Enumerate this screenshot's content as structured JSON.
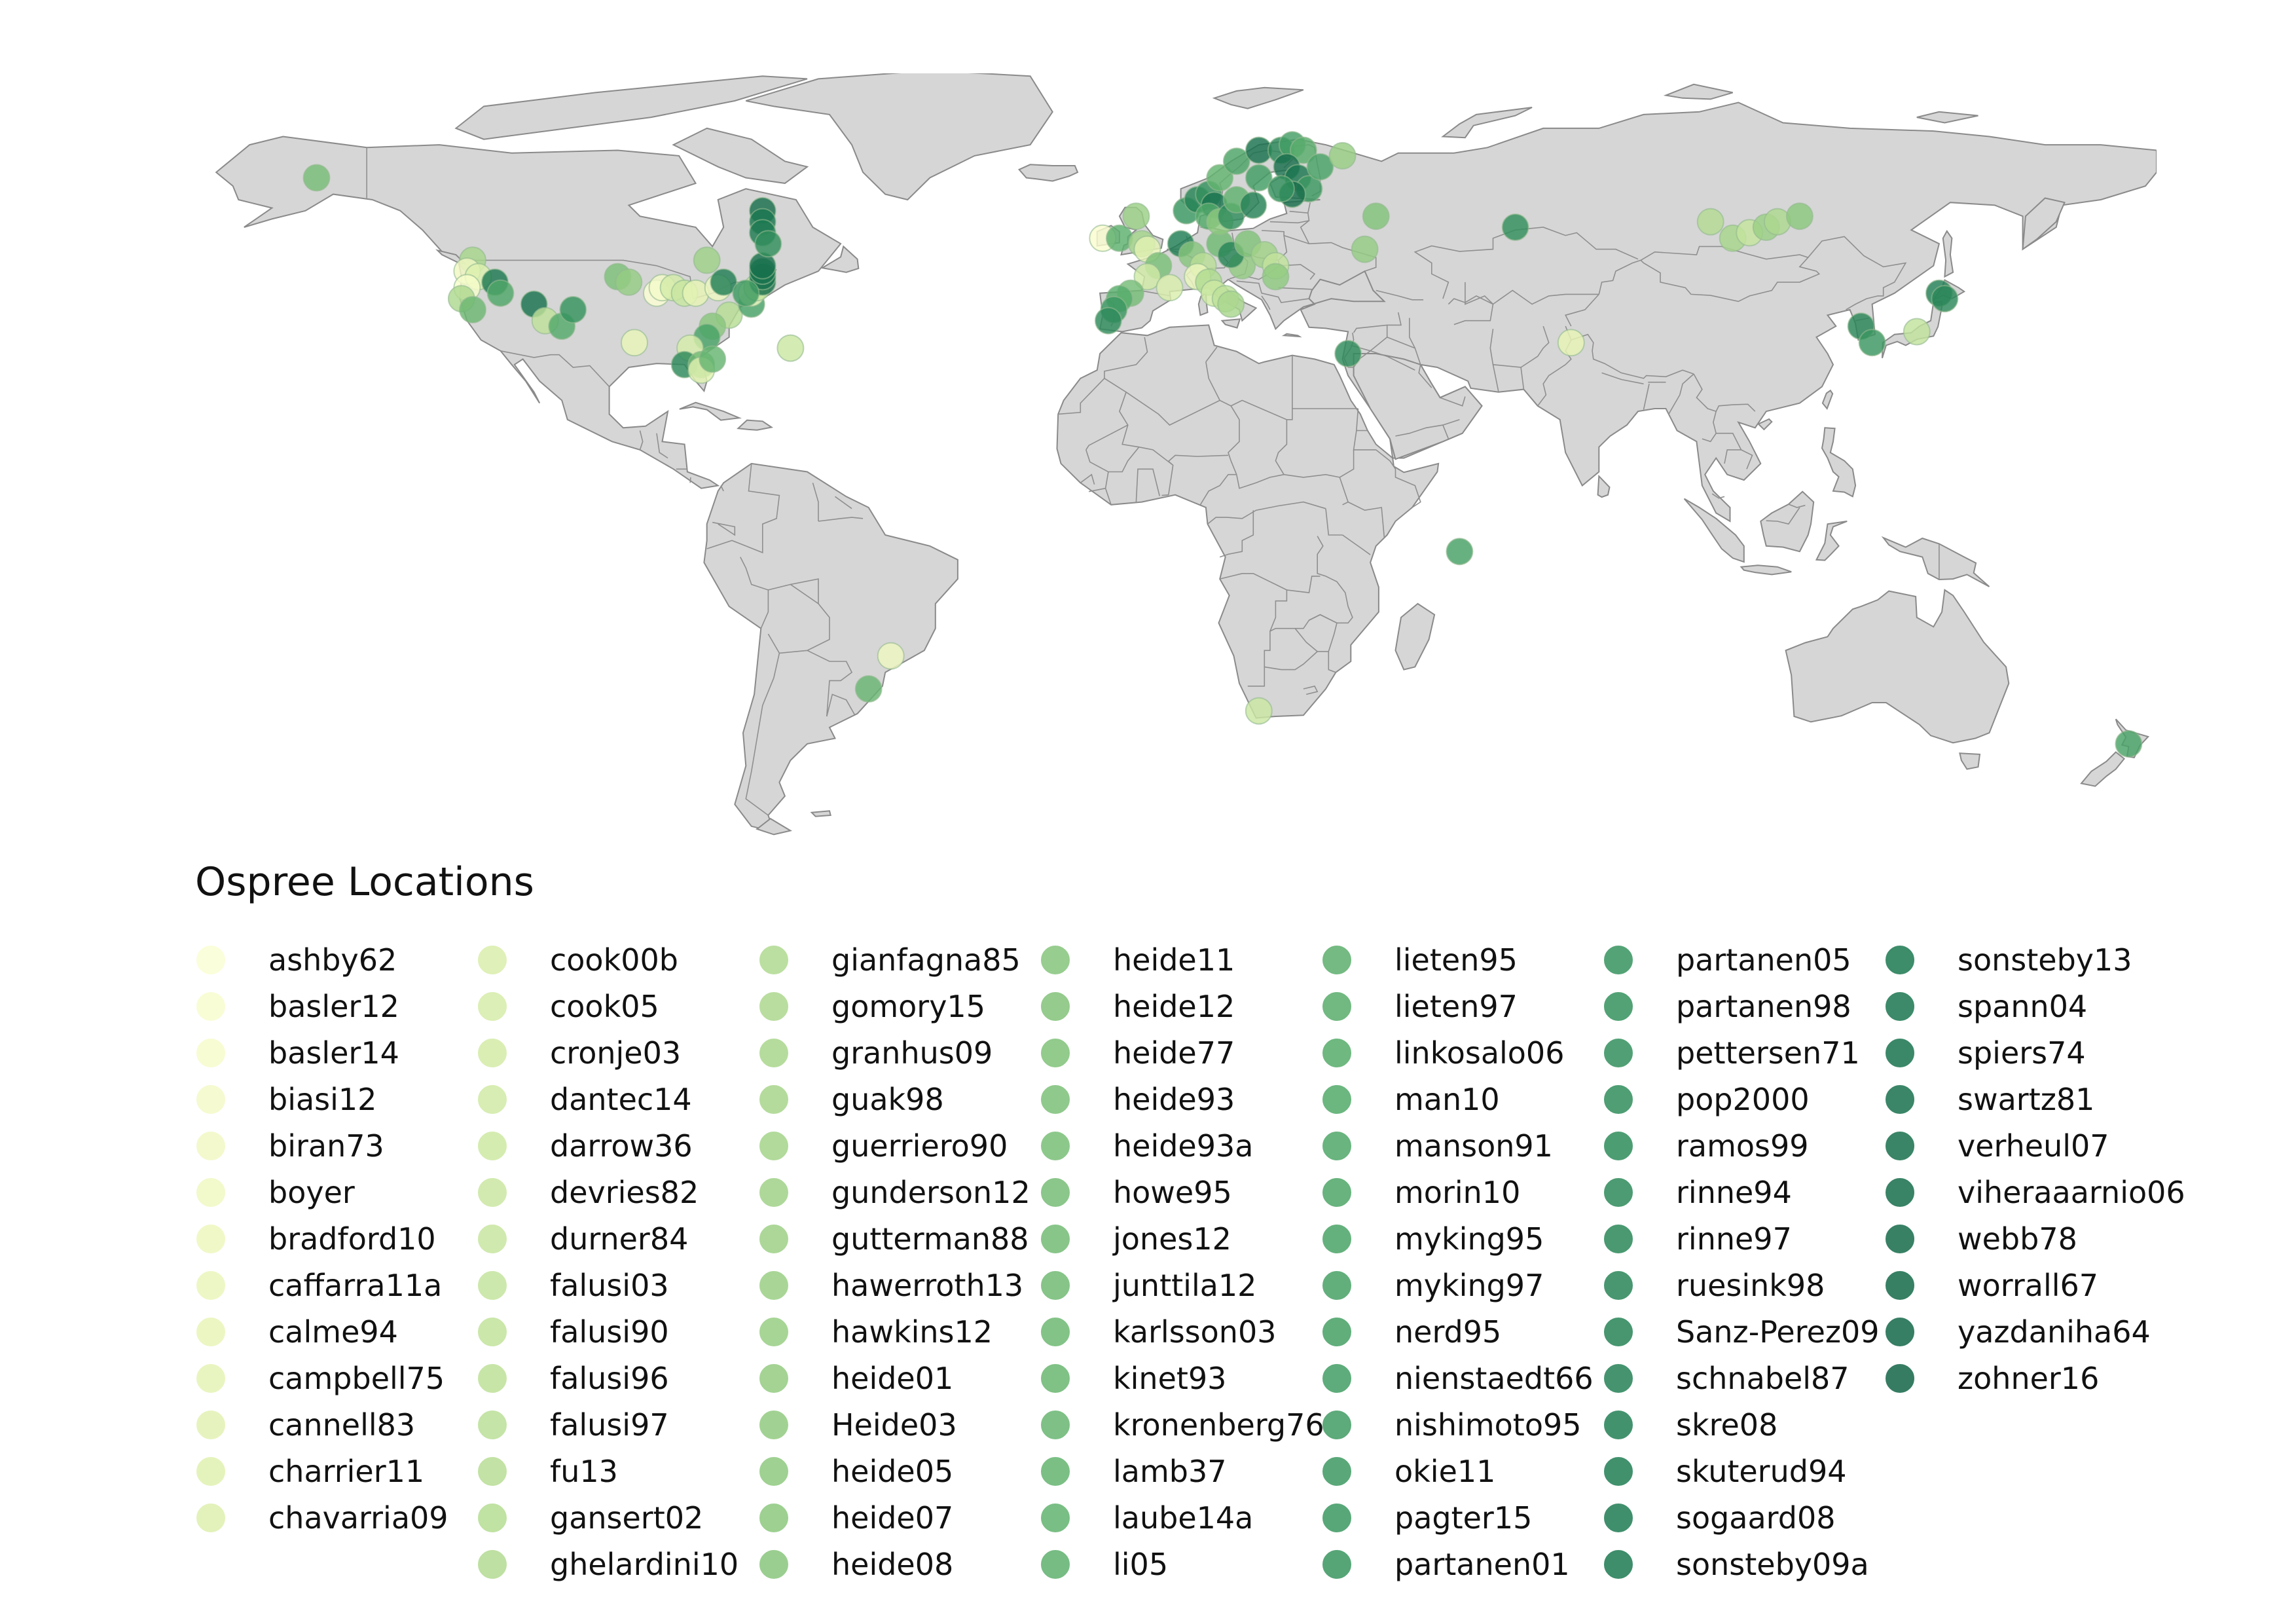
{
  "legend": {
    "title": "Ospree Locations",
    "studies": [
      [
        "ashby62",
        "#fbfed4"
      ],
      [
        "basler12",
        "#f9fdd0"
      ],
      [
        "basler14",
        "#f7fccc"
      ],
      [
        "biasi12",
        "#f4fac8"
      ],
      [
        "biran73",
        "#f2f9c5"
      ],
      [
        "boyer",
        "#f0f8c2"
      ],
      [
        "bradford10",
        "#eef7bf"
      ],
      [
        "caffarra11a",
        "#ebf6bc"
      ],
      [
        "calme94",
        "#e9f5b9"
      ],
      [
        "campbell75",
        "#e6f4b6"
      ],
      [
        "cannell83",
        "#e3f2b3"
      ],
      [
        "charrier11",
        "#e0f1b0"
      ],
      [
        "chavarria09",
        "#ddf0ae"
      ],
      [
        "cook00b",
        "#daeeac"
      ],
      [
        "cook05",
        "#d7edaa"
      ],
      [
        "cronje03",
        "#d4eca8"
      ],
      [
        "dantec14",
        "#d1eaa6"
      ],
      [
        "darrow36",
        "#cee9a4"
      ],
      [
        "devries82",
        "#cbe7a2"
      ],
      [
        "durner84",
        "#c8e6a0"
      ],
      [
        "falusi03",
        "#c5e49e"
      ],
      [
        "falusi90",
        "#c2e39c"
      ],
      [
        "falusi96",
        "#bfe19a"
      ],
      [
        "falusi97",
        "#bce098"
      ],
      [
        "fu13",
        "#b9de96"
      ],
      [
        "gansert02",
        "#b6dd94"
      ],
      [
        "ghelardini10",
        "#b3db92"
      ],
      [
        "gianfagna85",
        "#b0da90"
      ],
      [
        "gomory15",
        "#add88f"
      ],
      [
        "granhus09",
        "#aad78d"
      ],
      [
        "guak98",
        "#a7d58b"
      ],
      [
        "guerriero90",
        "#a4d48a"
      ],
      [
        "gunderson12",
        "#a1d288"
      ],
      [
        "gutterman88",
        "#9ed187"
      ],
      [
        "hawerroth13",
        "#9bcf85"
      ],
      [
        "hawkins12",
        "#98ce84"
      ],
      [
        "heide01",
        "#95cc82"
      ],
      [
        "Heide03",
        "#92cb81"
      ],
      [
        "heide05",
        "#8fc980"
      ],
      [
        "heide07",
        "#8cc87e"
      ],
      [
        "heide08",
        "#89c67d"
      ],
      [
        "heide11",
        "#86c57c"
      ],
      [
        "heide12",
        "#83c37a"
      ],
      [
        "heide77",
        "#80c279"
      ],
      [
        "heide93",
        "#7dc078"
      ],
      [
        "heide93a",
        "#7abf77"
      ],
      [
        "howe95",
        "#77bd76"
      ],
      [
        "jones12",
        "#74bc75"
      ],
      [
        "junttila12",
        "#71ba74"
      ],
      [
        "karlsson03",
        "#6eb973"
      ],
      [
        "kinet93",
        "#6bb772"
      ],
      [
        "kronenberg76",
        "#68b671"
      ],
      [
        "lamb37",
        "#65b470"
      ],
      [
        "laube14a",
        "#62b36f"
      ],
      [
        "li05",
        "#5fb16e"
      ],
      [
        "lieten95",
        "#5caf6d"
      ],
      [
        "lieten97",
        "#59ad6c"
      ],
      [
        "linkosalo06",
        "#56ac6b"
      ],
      [
        "man10",
        "#53aa6a"
      ],
      [
        "manson91",
        "#50a869"
      ],
      [
        "morin10",
        "#4ea668"
      ],
      [
        "myking95",
        "#4ba467"
      ],
      [
        "myking97",
        "#48a266"
      ],
      [
        "nerd95",
        "#46a065"
      ],
      [
        "nienstaedt66",
        "#439e64"
      ],
      [
        "nishimoto95",
        "#419c63"
      ],
      [
        "okie11",
        "#3e9a62"
      ],
      [
        "pagter15",
        "#3c9861"
      ],
      [
        "partanen01",
        "#399660"
      ],
      [
        "partanen05",
        "#37945f"
      ],
      [
        "partanen98",
        "#35925e"
      ],
      [
        "pettersen71",
        "#33905d"
      ],
      [
        "pop2000",
        "#318e5c"
      ],
      [
        "ramos99",
        "#2f8c5b"
      ],
      [
        "rinne94",
        "#2d8a5a"
      ],
      [
        "rinne97",
        "#2b8859"
      ],
      [
        "ruesink98",
        "#298658"
      ],
      [
        "Sanz-Perez09",
        "#278457"
      ],
      [
        "schnabel87",
        "#258256"
      ],
      [
        "skre08",
        "#238055"
      ],
      [
        "skuterud94",
        "#217e54"
      ],
      [
        "sogaard08",
        "#1f7c53"
      ],
      [
        "sonsteby09a",
        "#1d7a52"
      ],
      [
        "sonsteby13",
        "#1c7851"
      ],
      [
        "spann04",
        "#1b7650"
      ],
      [
        "spiers74",
        "#1a744f"
      ],
      [
        "swartz81",
        "#19724e"
      ],
      [
        "verheul07",
        "#18704d"
      ],
      [
        "viheraaarnio06",
        "#176e4c"
      ],
      [
        "webb78",
        "#166c4b"
      ],
      [
        "worrall67",
        "#156a4a"
      ],
      [
        "yazdaniha64",
        "#146849"
      ],
      [
        "zohner16",
        "#136648"
      ]
    ]
  },
  "map": {
    "projection": "equirectangular",
    "lon_range": [
      -180,
      180
    ],
    "lat_range": [
      -57,
      83
    ],
    "land_color": "#d6d6d6",
    "border_color": "#8a8a8a",
    "sites": [
      {
        "lon": -150,
        "lat": 64,
        "c": 46
      },
      {
        "lon": -122,
        "lat": 49,
        "c": 30
      },
      {
        "lon": -123,
        "lat": 47,
        "c": 5
      },
      {
        "lon": -121,
        "lat": 46,
        "c": 12
      },
      {
        "lon": -123,
        "lat": 44,
        "c": 2
      },
      {
        "lon": -124,
        "lat": 42,
        "c": 28
      },
      {
        "lon": -122,
        "lat": 40,
        "c": 50
      },
      {
        "lon": -118,
        "lat": 45,
        "c": 83
      },
      {
        "lon": -117,
        "lat": 43,
        "c": 60
      },
      {
        "lon": -111,
        "lat": 41,
        "c": 86
      },
      {
        "lon": -109,
        "lat": 38,
        "c": 22
      },
      {
        "lon": -106,
        "lat": 37,
        "c": 58
      },
      {
        "lon": -104,
        "lat": 40,
        "c": 70
      },
      {
        "lon": -96,
        "lat": 46,
        "c": 44
      },
      {
        "lon": -94,
        "lat": 45,
        "c": 36
      },
      {
        "lon": -93,
        "lat": 34,
        "c": 8
      },
      {
        "lon": -89,
        "lat": 43,
        "c": 0
      },
      {
        "lon": -88,
        "lat": 44,
        "c": 3
      },
      {
        "lon": -86,
        "lat": 44,
        "c": 15
      },
      {
        "lon": -84,
        "lat": 43,
        "c": 19
      },
      {
        "lon": -82,
        "lat": 43,
        "c": 9
      },
      {
        "lon": -80,
        "lat": 49,
        "c": 33
      },
      {
        "lon": -78,
        "lat": 44,
        "c": 6
      },
      {
        "lon": -77,
        "lat": 45,
        "c": 80
      },
      {
        "lon": -76,
        "lat": 39,
        "c": 25
      },
      {
        "lon": -79,
        "lat": 37,
        "c": 40
      },
      {
        "lon": -80,
        "lat": 35,
        "c": 62
      },
      {
        "lon": -83,
        "lat": 33,
        "c": 14
      },
      {
        "lon": -84,
        "lat": 30,
        "c": 75
      },
      {
        "lon": -81,
        "lat": 30,
        "c": 48
      },
      {
        "lon": -81,
        "lat": 29,
        "c": 11
      },
      {
        "lon": -79,
        "lat": 31,
        "c": 52
      },
      {
        "lon": -72,
        "lat": 41,
        "c": 63
      },
      {
        "lon": -72,
        "lat": 43,
        "c": 4
      },
      {
        "lon": -71,
        "lat": 44,
        "c": 20
      },
      {
        "lon": -70,
        "lat": 45,
        "c": 89
      },
      {
        "lon": -70,
        "lat": 46,
        "c": 86
      },
      {
        "lon": -70,
        "lat": 47,
        "c": 85
      },
      {
        "lon": -70,
        "lat": 48,
        "c": 87
      },
      {
        "lon": -70,
        "lat": 58,
        "c": 88
      },
      {
        "lon": -70,
        "lat": 56,
        "c": 84
      },
      {
        "lon": -70,
        "lat": 54,
        "c": 82
      },
      {
        "lon": -69,
        "lat": 52,
        "c": 72
      },
      {
        "lon": -73,
        "lat": 43,
        "c": 66
      },
      {
        "lon": -65,
        "lat": 33,
        "c": 18
      },
      {
        "lon": -9,
        "lat": 53,
        "c": 1
      },
      {
        "lon": -6,
        "lat": 53,
        "c": 55
      },
      {
        "lon": -3,
        "lat": 57,
        "c": 34
      },
      {
        "lon": -2,
        "lat": 52,
        "c": 31
      },
      {
        "lon": -1,
        "lat": 51,
        "c": 10
      },
      {
        "lon": 1,
        "lat": 48,
        "c": 45
      },
      {
        "lon": -1,
        "lat": 46,
        "c": 16
      },
      {
        "lon": -4,
        "lat": 43,
        "c": 47
      },
      {
        "lon": -6,
        "lat": 42,
        "c": 57
      },
      {
        "lon": -7,
        "lat": 40,
        "c": 68
      },
      {
        "lon": -8,
        "lat": 38,
        "c": 74
      },
      {
        "lon": 3,
        "lat": 44,
        "c": 13
      },
      {
        "lon": 5,
        "lat": 52,
        "c": 81
      },
      {
        "lon": 7,
        "lat": 50,
        "c": 41
      },
      {
        "lon": 9,
        "lat": 48,
        "c": 24
      },
      {
        "lon": 8,
        "lat": 46,
        "c": 7
      },
      {
        "lon": 10,
        "lat": 45,
        "c": 27
      },
      {
        "lon": 11,
        "lat": 43,
        "c": 17
      },
      {
        "lon": 13,
        "lat": 42,
        "c": 23
      },
      {
        "lon": 14,
        "lat": 41,
        "c": 29
      },
      {
        "lon": 16,
        "lat": 48,
        "c": 37
      },
      {
        "lon": 12,
        "lat": 52,
        "c": 49
      },
      {
        "lon": 14,
        "lat": 50,
        "c": 77
      },
      {
        "lon": 17,
        "lat": 52,
        "c": 43
      },
      {
        "lon": 20,
        "lat": 50,
        "c": 32
      },
      {
        "lon": 22,
        "lat": 48,
        "c": 21
      },
      {
        "lon": 22,
        "lat": 46,
        "c": 38
      },
      {
        "lon": 6,
        "lat": 58,
        "c": 69
      },
      {
        "lon": 8,
        "lat": 60,
        "c": 78
      },
      {
        "lon": 10,
        "lat": 61,
        "c": 71
      },
      {
        "lon": 11,
        "lat": 59,
        "c": 85
      },
      {
        "lon": 10,
        "lat": 57,
        "c": 59
      },
      {
        "lon": 12,
        "lat": 56,
        "c": 39
      },
      {
        "lon": 14,
        "lat": 57,
        "c": 73
      },
      {
        "lon": 15,
        "lat": 60,
        "c": 54
      },
      {
        "lon": 18,
        "lat": 59,
        "c": 79
      },
      {
        "lon": 19,
        "lat": 64,
        "c": 65
      },
      {
        "lon": 12,
        "lat": 64,
        "c": 53
      },
      {
        "lon": 15,
        "lat": 67,
        "c": 61
      },
      {
        "lon": 19,
        "lat": 69,
        "c": 87
      },
      {
        "lon": 23,
        "lat": 69,
        "c": 76
      },
      {
        "lon": 25,
        "lat": 70,
        "c": 64
      },
      {
        "lon": 27,
        "lat": 69,
        "c": 56
      },
      {
        "lon": 24,
        "lat": 66,
        "c": 88
      },
      {
        "lon": 26,
        "lat": 64,
        "c": 84
      },
      {
        "lon": 28,
        "lat": 62,
        "c": 67
      },
      {
        "lon": 25,
        "lat": 61,
        "c": 89
      },
      {
        "lon": 23,
        "lat": 62,
        "c": 71
      },
      {
        "lon": 30,
        "lat": 66,
        "c": 62
      },
      {
        "lon": 34,
        "lat": 68,
        "c": 35
      },
      {
        "lon": 40,
        "lat": 57,
        "c": 42
      },
      {
        "lon": 38,
        "lat": 51,
        "c": 36
      },
      {
        "lon": 65,
        "lat": 55,
        "c": 72
      },
      {
        "lon": 100,
        "lat": 56,
        "c": 26
      },
      {
        "lon": 104,
        "lat": 53,
        "c": 30
      },
      {
        "lon": 107,
        "lat": 54,
        "c": 20
      },
      {
        "lon": 110,
        "lat": 55,
        "c": 34
      },
      {
        "lon": 112,
        "lat": 56,
        "c": 28
      },
      {
        "lon": 116,
        "lat": 57,
        "c": 39
      },
      {
        "lon": 75,
        "lat": 34,
        "c": 9
      },
      {
        "lon": 35,
        "lat": 32,
        "c": 74
      },
      {
        "lon": 55,
        "lat": -4,
        "c": 63
      },
      {
        "lon": 127,
        "lat": 37,
        "c": 77
      },
      {
        "lon": 129,
        "lat": 34,
        "c": 68
      },
      {
        "lon": 137,
        "lat": 36,
        "c": 21
      },
      {
        "lon": 141,
        "lat": 43,
        "c": 80
      },
      {
        "lon": 142,
        "lat": 42,
        "c": 75
      },
      {
        "lon": -47,
        "lat": -23,
        "c": 6
      },
      {
        "lon": -51,
        "lat": -29,
        "c": 51
      },
      {
        "lon": 19,
        "lat": -33,
        "c": 18
      },
      {
        "lon": 175,
        "lat": -39,
        "c": 62
      }
    ]
  }
}
